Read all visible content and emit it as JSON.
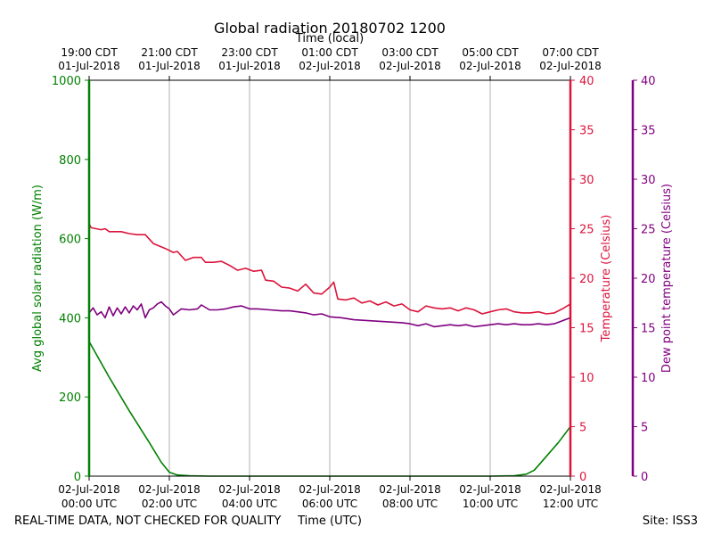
{
  "chart_data": {
    "type": "line",
    "title": "Global radiation 20180702 1200",
    "top_xlabel": "Time (local)",
    "xlabel": "Time (UTC)",
    "footer_left": "REAL-TIME DATA, NOT CHECKED FOR QUALITY",
    "footer_right": "Site: ISS3",
    "xlim_hours": [
      0,
      12
    ],
    "bottom_ticks": [
      {
        "hour": 0,
        "date": "02-Jul-2018",
        "time": "00:00 UTC"
      },
      {
        "hour": 2,
        "date": "02-Jul-2018",
        "time": "02:00 UTC"
      },
      {
        "hour": 4,
        "date": "02-Jul-2018",
        "time": "04:00 UTC"
      },
      {
        "hour": 6,
        "date": "02-Jul-2018",
        "time": "06:00 UTC"
      },
      {
        "hour": 8,
        "date": "02-Jul-2018",
        "time": "08:00 UTC"
      },
      {
        "hour": 10,
        "date": "02-Jul-2018",
        "time": "10:00 UTC"
      },
      {
        "hour": 12,
        "date": "02-Jul-2018",
        "time": "12:00 UTC"
      }
    ],
    "top_ticks": [
      {
        "hour": 0,
        "time": "19:00 CDT",
        "date": "01-Jul-2018"
      },
      {
        "hour": 2,
        "time": "21:00 CDT",
        "date": "01-Jul-2018"
      },
      {
        "hour": 4,
        "time": "23:00 CDT",
        "date": "01-Jul-2018"
      },
      {
        "hour": 6,
        "time": "01:00 CDT",
        "date": "02-Jul-2018"
      },
      {
        "hour": 8,
        "time": "03:00 CDT",
        "date": "02-Jul-2018"
      },
      {
        "hour": 10,
        "time": "05:00 CDT",
        "date": "02-Jul-2018"
      },
      {
        "hour": 12,
        "time": "07:00 CDT",
        "date": "02-Jul-2018"
      }
    ],
    "vertical_gridlines_hours": [
      2,
      4,
      6,
      8,
      10
    ],
    "axes": {
      "left": {
        "label": "Avg global solar radiation (W/m)",
        "ylim": [
          0,
          1000
        ],
        "ticks": [
          0,
          200,
          400,
          600,
          800,
          1000
        ],
        "color": "#008000"
      },
      "right": {
        "label": "Temperature (Celsius)",
        "ylim": [
          0,
          40
        ],
        "ticks": [
          0,
          5,
          10,
          15,
          20,
          25,
          30,
          35,
          40
        ],
        "color": "#dc143c"
      },
      "far_right": {
        "label": "Dew point temperature (Celsius)",
        "ylim": [
          0,
          40
        ],
        "ticks": [
          0,
          5,
          10,
          15,
          20,
          25,
          30,
          35,
          40
        ],
        "color": "#800080"
      }
    },
    "series": [
      {
        "key": "radiation",
        "axis": "left",
        "color": "#008000",
        "points": [
          [
            0,
            340
          ],
          [
            0.5,
            250
          ],
          [
            1.0,
            165
          ],
          [
            1.5,
            85
          ],
          [
            1.8,
            35
          ],
          [
            2.0,
            10
          ],
          [
            2.2,
            3
          ],
          [
            2.5,
            1
          ],
          [
            3,
            0
          ],
          [
            4,
            0
          ],
          [
            5,
            0
          ],
          [
            6,
            0
          ],
          [
            7,
            0
          ],
          [
            8,
            0
          ],
          [
            9,
            0
          ],
          [
            10,
            0
          ],
          [
            10.6,
            1
          ],
          [
            10.9,
            5
          ],
          [
            11.1,
            15
          ],
          [
            11.4,
            50
          ],
          [
            11.7,
            85
          ],
          [
            12,
            125
          ]
        ]
      },
      {
        "key": "temperature",
        "axis": "right",
        "color": "#dc143c",
        "points": [
          [
            0,
            25.5
          ],
          [
            0.05,
            25.1
          ],
          [
            0.3,
            24.9
          ],
          [
            0.4,
            25.0
          ],
          [
            0.5,
            24.7
          ],
          [
            0.8,
            24.7
          ],
          [
            1.0,
            24.5
          ],
          [
            1.2,
            24.4
          ],
          [
            1.4,
            24.4
          ],
          [
            1.6,
            23.5
          ],
          [
            1.9,
            23.0
          ],
          [
            2.1,
            22.6
          ],
          [
            2.2,
            22.7
          ],
          [
            2.4,
            21.8
          ],
          [
            2.6,
            22.1
          ],
          [
            2.8,
            22.1
          ],
          [
            2.9,
            21.6
          ],
          [
            3.1,
            21.6
          ],
          [
            3.3,
            21.7
          ],
          [
            3.5,
            21.3
          ],
          [
            3.7,
            20.8
          ],
          [
            3.9,
            21.0
          ],
          [
            4.1,
            20.7
          ],
          [
            4.3,
            20.8
          ],
          [
            4.4,
            19.8
          ],
          [
            4.6,
            19.7
          ],
          [
            4.8,
            19.1
          ],
          [
            5.0,
            19.0
          ],
          [
            5.2,
            18.7
          ],
          [
            5.4,
            19.4
          ],
          [
            5.6,
            18.5
          ],
          [
            5.8,
            18.4
          ],
          [
            6.0,
            19.1
          ],
          [
            6.1,
            19.6
          ],
          [
            6.2,
            17.9
          ],
          [
            6.4,
            17.8
          ],
          [
            6.6,
            18.0
          ],
          [
            6.8,
            17.5
          ],
          [
            7.0,
            17.7
          ],
          [
            7.2,
            17.3
          ],
          [
            7.4,
            17.6
          ],
          [
            7.6,
            17.2
          ],
          [
            7.8,
            17.4
          ],
          [
            8.0,
            16.8
          ],
          [
            8.2,
            16.6
          ],
          [
            8.4,
            17.2
          ],
          [
            8.6,
            17.0
          ],
          [
            8.8,
            16.9
          ],
          [
            9.0,
            17.0
          ],
          [
            9.2,
            16.7
          ],
          [
            9.4,
            17.0
          ],
          [
            9.6,
            16.8
          ],
          [
            9.8,
            16.4
          ],
          [
            10.0,
            16.6
          ],
          [
            10.2,
            16.8
          ],
          [
            10.4,
            16.9
          ],
          [
            10.6,
            16.6
          ],
          [
            10.8,
            16.5
          ],
          [
            11.0,
            16.5
          ],
          [
            11.2,
            16.6
          ],
          [
            11.4,
            16.4
          ],
          [
            11.6,
            16.5
          ],
          [
            11.8,
            16.9
          ],
          [
            12.0,
            17.4
          ]
        ]
      },
      {
        "key": "dew_point",
        "axis": "far_right",
        "color": "#800080",
        "points": [
          [
            0,
            16.5
          ],
          [
            0.1,
            17.0
          ],
          [
            0.2,
            16.3
          ],
          [
            0.3,
            16.6
          ],
          [
            0.4,
            16.0
          ],
          [
            0.5,
            17.1
          ],
          [
            0.6,
            16.2
          ],
          [
            0.7,
            17.0
          ],
          [
            0.8,
            16.4
          ],
          [
            0.9,
            17.1
          ],
          [
            1.0,
            16.5
          ],
          [
            1.1,
            17.2
          ],
          [
            1.2,
            16.8
          ],
          [
            1.3,
            17.4
          ],
          [
            1.4,
            16.0
          ],
          [
            1.5,
            16.8
          ],
          [
            1.6,
            17.0
          ],
          [
            1.7,
            17.4
          ],
          [
            1.8,
            17.6
          ],
          [
            1.9,
            17.2
          ],
          [
            2.0,
            16.9
          ],
          [
            2.1,
            16.3
          ],
          [
            2.3,
            16.9
          ],
          [
            2.5,
            16.8
          ],
          [
            2.7,
            16.9
          ],
          [
            2.8,
            17.3
          ],
          [
            3.0,
            16.8
          ],
          [
            3.2,
            16.8
          ],
          [
            3.4,
            16.9
          ],
          [
            3.6,
            17.1
          ],
          [
            3.8,
            17.2
          ],
          [
            4.0,
            16.9
          ],
          [
            4.2,
            16.9
          ],
          [
            4.5,
            16.8
          ],
          [
            4.8,
            16.7
          ],
          [
            5.0,
            16.7
          ],
          [
            5.2,
            16.6
          ],
          [
            5.4,
            16.5
          ],
          [
            5.6,
            16.3
          ],
          [
            5.8,
            16.4
          ],
          [
            6.0,
            16.1
          ],
          [
            6.3,
            16.0
          ],
          [
            6.6,
            15.8
          ],
          [
            7.0,
            15.7
          ],
          [
            7.4,
            15.6
          ],
          [
            7.8,
            15.5
          ],
          [
            8.0,
            15.4
          ],
          [
            8.2,
            15.2
          ],
          [
            8.4,
            15.4
          ],
          [
            8.6,
            15.1
          ],
          [
            8.8,
            15.2
          ],
          [
            9.0,
            15.3
          ],
          [
            9.2,
            15.2
          ],
          [
            9.4,
            15.3
          ],
          [
            9.6,
            15.1
          ],
          [
            9.8,
            15.2
          ],
          [
            10.0,
            15.3
          ],
          [
            10.2,
            15.4
          ],
          [
            10.4,
            15.3
          ],
          [
            10.6,
            15.4
          ],
          [
            10.8,
            15.3
          ],
          [
            11.0,
            15.3
          ],
          [
            11.2,
            15.4
          ],
          [
            11.4,
            15.3
          ],
          [
            11.6,
            15.4
          ],
          [
            11.8,
            15.7
          ],
          [
            12.0,
            16.0
          ]
        ]
      }
    ]
  }
}
